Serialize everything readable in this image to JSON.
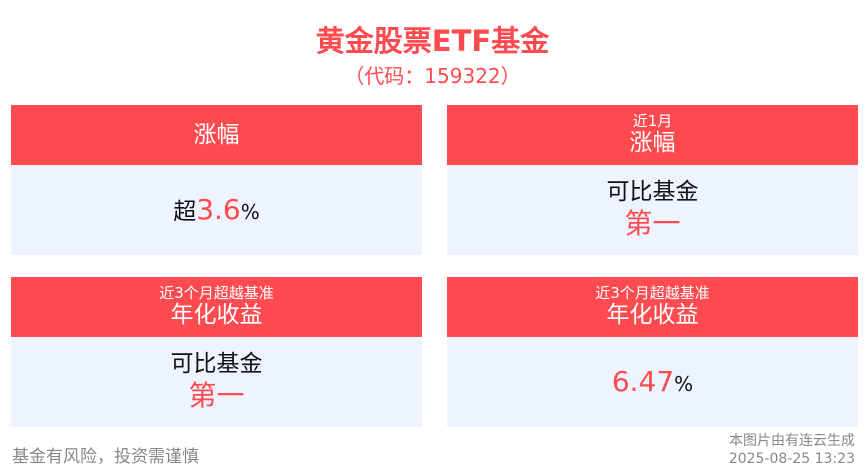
{
  "title": "黄金股票ETF基金",
  "code": "（代码：159322）",
  "colors": {
    "accent": "#FF4B4F",
    "card_bg": "#EDF3FF"
  },
  "cards": [
    {
      "sub": "",
      "main": "涨幅",
      "prefix": "超",
      "value": "3.6",
      "unit": "%"
    },
    {
      "sub": "近1月",
      "main": "涨幅",
      "line1": "可比基金",
      "line2": "第一"
    },
    {
      "sub": "近3个月超越基准",
      "main": "年化收益",
      "line1": "可比基金",
      "line2": "第一"
    },
    {
      "sub": "近3个月超越基准",
      "main": "年化收益",
      "value": "6.47",
      "unit": "%"
    }
  ],
  "footer": {
    "disclaimer": "基金有风险，投资需谨慎",
    "source": "本图片由有连云生成",
    "timestamp": "2025-08-25 13:23"
  }
}
